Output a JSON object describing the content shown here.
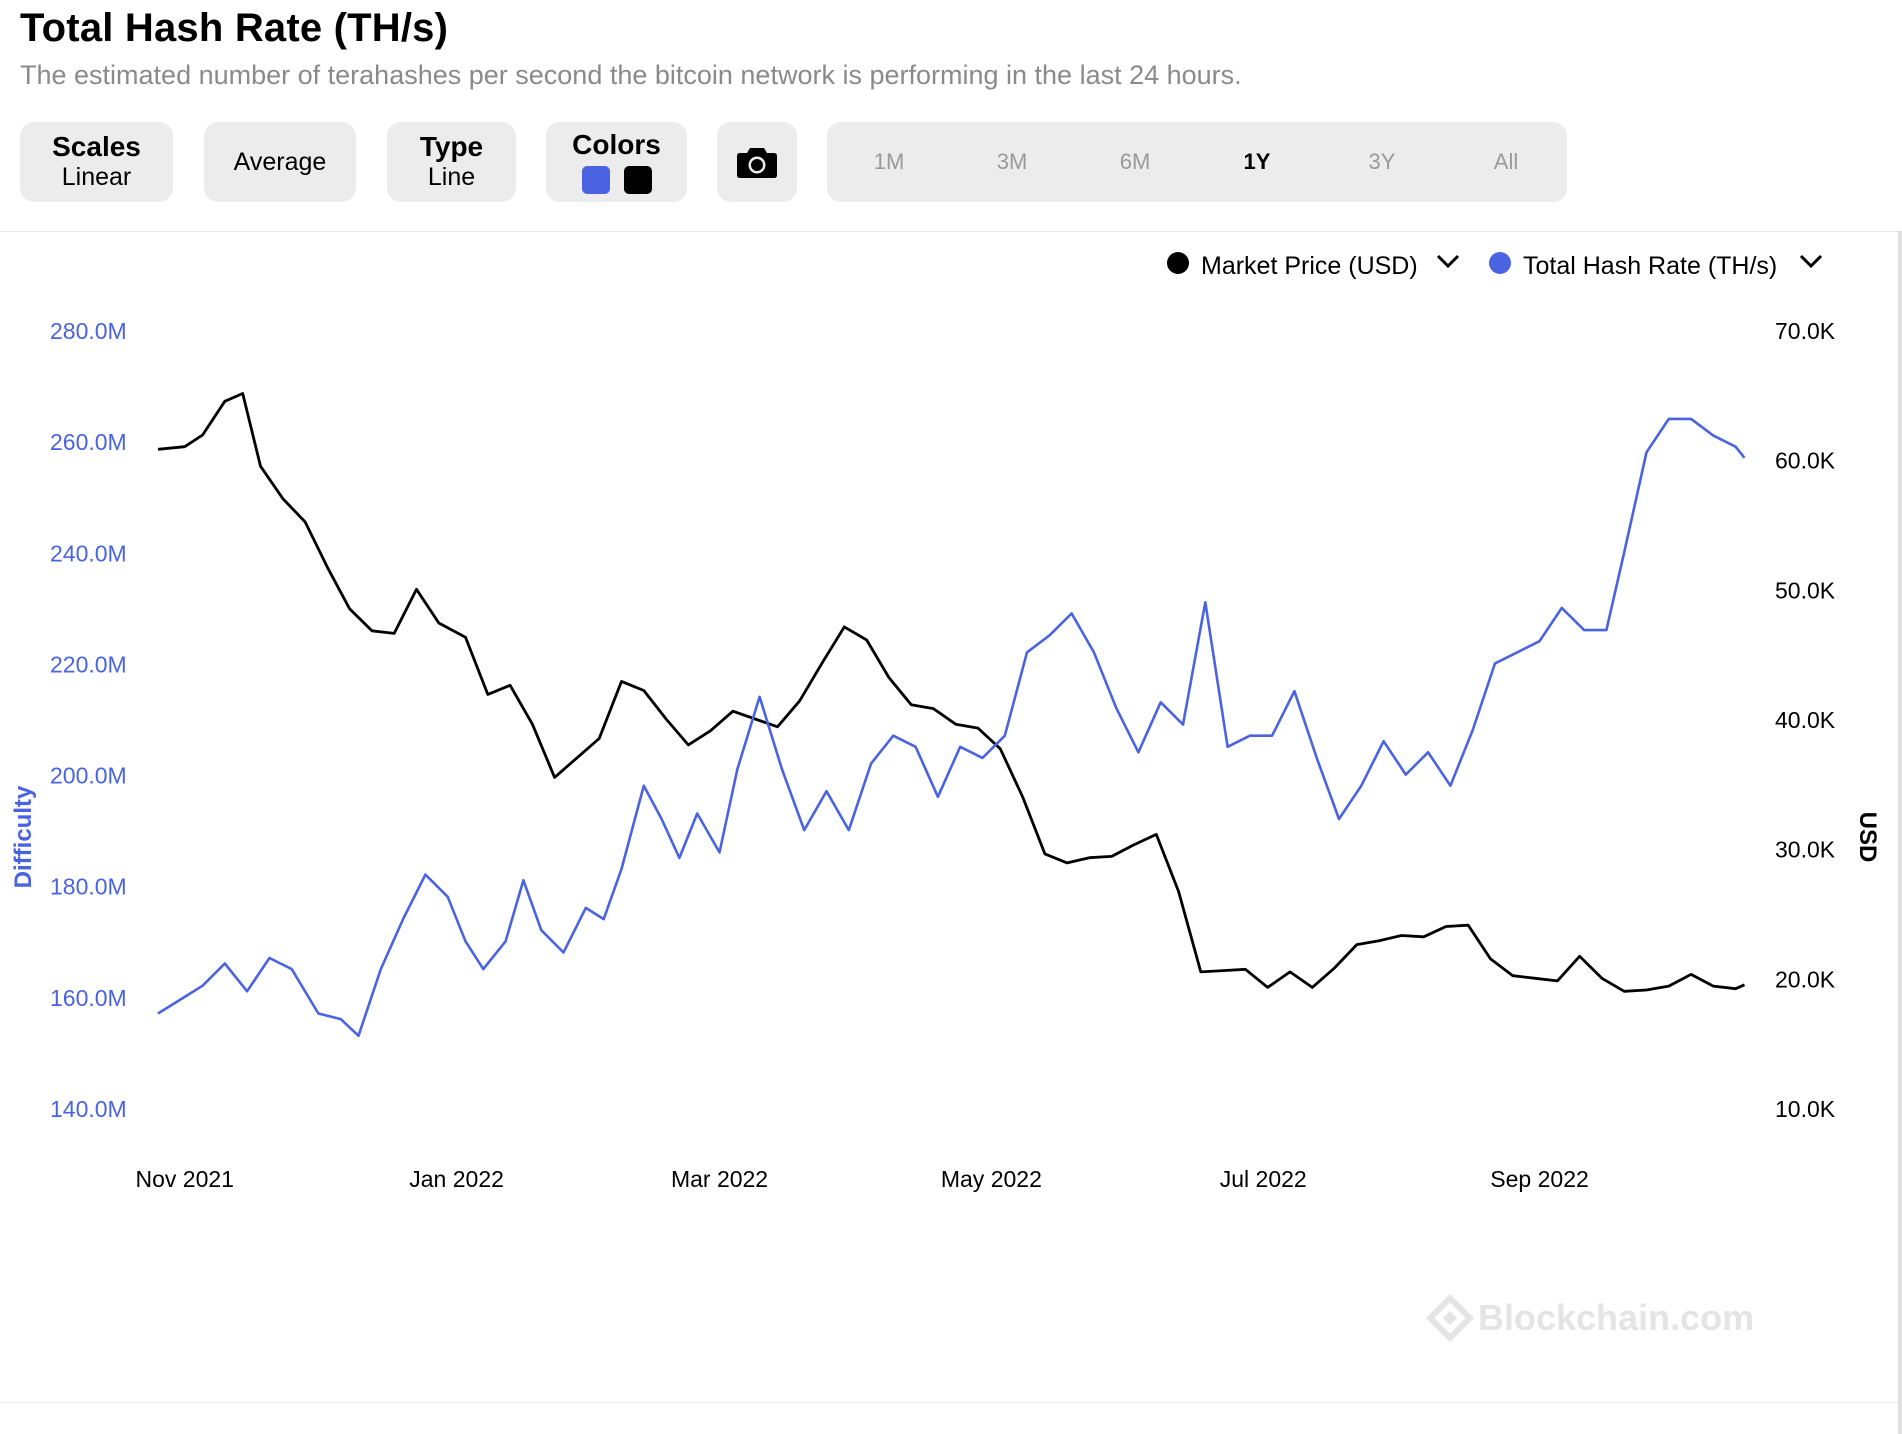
{
  "header": {
    "title": "Total Hash Rate (TH/s)",
    "subtitle": "The estimated number of terahashes per second the bitcoin network is performing in the last 24 hours."
  },
  "controls": {
    "scales": {
      "label": "Scales",
      "value": "Linear"
    },
    "average": {
      "label": "Average"
    },
    "type": {
      "label": "Type",
      "value": "Line"
    },
    "colors": {
      "label": "Colors",
      "swatches": [
        "#4a63e0",
        "#000000"
      ]
    },
    "camera": {
      "icon": "camera-icon"
    },
    "ranges": [
      "1M",
      "3M",
      "6M",
      "1Y",
      "3Y",
      "All"
    ],
    "selected_range": "1Y"
  },
  "watermark": "Blockchain.com",
  "chart_data": {
    "type": "line",
    "legend": [
      {
        "name": "Market Price (USD)",
        "color": "#000000"
      },
      {
        "name": "Total Hash Rate (TH/s)",
        "color": "#4a63e0"
      }
    ],
    "legend_position": "top-right",
    "x_ticks": [
      "Nov 2021",
      "Jan 2022",
      "Mar 2022",
      "May 2022",
      "Jul 2022",
      "Sep 2022"
    ],
    "x_tick_dates": [
      "2021-11-01",
      "2022-01-01",
      "2022-03-01",
      "2022-05-01",
      "2022-07-01",
      "2022-09-01"
    ],
    "xlim": [
      "2021-10-26",
      "2022-10-18"
    ],
    "y_left": {
      "label": "Difficulty",
      "ticks": [
        "280.0M",
        "260.0M",
        "240.0M",
        "220.0M",
        "200.0M",
        "180.0M",
        "160.0M",
        "140.0M"
      ],
      "range": [
        140,
        280
      ],
      "color": "#4a63e0"
    },
    "y_right": {
      "label": "USD",
      "ticks": [
        "70.0K",
        "60.0K",
        "50.0K",
        "40.0K",
        "30.0K",
        "20.0K",
        "10.0K"
      ],
      "range": [
        10,
        70
      ]
    },
    "grid": false,
    "series": [
      {
        "name": "Total Hash Rate (TH/s)",
        "axis": "left",
        "color": "#4a63e0",
        "points": [
          [
            "2021-10-26",
            157
          ],
          [
            "2021-11-01",
            160
          ],
          [
            "2021-11-05",
            162
          ],
          [
            "2021-11-10",
            166
          ],
          [
            "2021-11-15",
            161
          ],
          [
            "2021-11-20",
            167
          ],
          [
            "2021-11-25",
            165
          ],
          [
            "2021-12-01",
            157
          ],
          [
            "2021-12-06",
            156
          ],
          [
            "2021-12-10",
            153
          ],
          [
            "2021-12-15",
            165
          ],
          [
            "2021-12-20",
            174
          ],
          [
            "2021-12-25",
            182
          ],
          [
            "2021-12-30",
            178
          ],
          [
            "2022-01-03",
            170
          ],
          [
            "2022-01-07",
            165
          ],
          [
            "2022-01-12",
            170
          ],
          [
            "2022-01-16",
            181
          ],
          [
            "2022-01-20",
            172
          ],
          [
            "2022-01-25",
            168
          ],
          [
            "2022-01-30",
            176
          ],
          [
            "2022-02-03",
            174
          ],
          [
            "2022-02-07",
            183
          ],
          [
            "2022-02-12",
            198
          ],
          [
            "2022-02-16",
            192
          ],
          [
            "2022-02-20",
            185
          ],
          [
            "2022-02-24",
            193
          ],
          [
            "2022-03-01",
            186
          ],
          [
            "2022-03-05",
            201
          ],
          [
            "2022-03-10",
            214
          ],
          [
            "2022-03-15",
            201
          ],
          [
            "2022-03-20",
            190
          ],
          [
            "2022-03-25",
            197
          ],
          [
            "2022-03-30",
            190
          ],
          [
            "2022-04-04",
            202
          ],
          [
            "2022-04-09",
            207
          ],
          [
            "2022-04-14",
            205
          ],
          [
            "2022-04-19",
            196
          ],
          [
            "2022-04-24",
            205
          ],
          [
            "2022-04-29",
            203
          ],
          [
            "2022-05-04",
            207
          ],
          [
            "2022-05-09",
            222
          ],
          [
            "2022-05-14",
            225
          ],
          [
            "2022-05-19",
            229
          ],
          [
            "2022-05-24",
            222
          ],
          [
            "2022-05-29",
            212
          ],
          [
            "2022-06-03",
            204
          ],
          [
            "2022-06-08",
            213
          ],
          [
            "2022-06-13",
            209
          ],
          [
            "2022-06-18",
            231
          ],
          [
            "2022-06-23",
            205
          ],
          [
            "2022-06-28",
            207
          ],
          [
            "2022-07-03",
            207
          ],
          [
            "2022-07-08",
            215
          ],
          [
            "2022-07-13",
            203
          ],
          [
            "2022-07-18",
            192
          ],
          [
            "2022-07-23",
            198
          ],
          [
            "2022-07-28",
            206
          ],
          [
            "2022-08-02",
            200
          ],
          [
            "2022-08-07",
            204
          ],
          [
            "2022-08-12",
            198
          ],
          [
            "2022-08-17",
            208
          ],
          [
            "2022-08-22",
            220
          ],
          [
            "2022-08-27",
            222
          ],
          [
            "2022-09-01",
            224
          ],
          [
            "2022-09-06",
            230
          ],
          [
            "2022-09-11",
            226
          ],
          [
            "2022-09-16",
            226
          ],
          [
            "2022-09-20",
            240
          ],
          [
            "2022-09-25",
            258
          ],
          [
            "2022-09-30",
            264
          ],
          [
            "2022-10-05",
            264
          ],
          [
            "2022-10-10",
            261
          ],
          [
            "2022-10-15",
            259
          ],
          [
            "2022-10-17",
            257
          ]
        ]
      },
      {
        "name": "Market Price (USD)",
        "axis": "right",
        "color": "#000000",
        "points": [
          [
            "2021-10-26",
            60.8
          ],
          [
            "2021-11-01",
            61.0
          ],
          [
            "2021-11-05",
            61.9
          ],
          [
            "2021-11-10",
            64.5
          ],
          [
            "2021-11-14",
            65.1
          ],
          [
            "2021-11-18",
            59.5
          ],
          [
            "2021-11-23",
            57.0
          ],
          [
            "2021-11-28",
            55.2
          ],
          [
            "2021-12-03",
            51.7
          ],
          [
            "2021-12-08",
            48.5
          ],
          [
            "2021-12-13",
            46.8
          ],
          [
            "2021-12-18",
            46.6
          ],
          [
            "2021-12-23",
            50.0
          ],
          [
            "2021-12-28",
            47.4
          ],
          [
            "2022-01-03",
            46.3
          ],
          [
            "2022-01-08",
            41.9
          ],
          [
            "2022-01-13",
            42.6
          ],
          [
            "2022-01-18",
            39.6
          ],
          [
            "2022-01-23",
            35.5
          ],
          [
            "2022-01-28",
            37.0
          ],
          [
            "2022-02-02",
            38.5
          ],
          [
            "2022-02-07",
            42.9
          ],
          [
            "2022-02-12",
            42.2
          ],
          [
            "2022-02-17",
            40.0
          ],
          [
            "2022-02-22",
            38.0
          ],
          [
            "2022-02-27",
            39.1
          ],
          [
            "2022-03-04",
            40.6
          ],
          [
            "2022-03-09",
            40.0
          ],
          [
            "2022-03-14",
            39.4
          ],
          [
            "2022-03-19",
            41.4
          ],
          [
            "2022-03-24",
            44.3
          ],
          [
            "2022-03-29",
            47.1
          ],
          [
            "2022-04-03",
            46.1
          ],
          [
            "2022-04-08",
            43.2
          ],
          [
            "2022-04-13",
            41.1
          ],
          [
            "2022-04-18",
            40.8
          ],
          [
            "2022-04-23",
            39.6
          ],
          [
            "2022-04-28",
            39.3
          ],
          [
            "2022-05-03",
            37.7
          ],
          [
            "2022-05-08",
            34.0
          ],
          [
            "2022-05-13",
            29.6
          ],
          [
            "2022-05-18",
            28.9
          ],
          [
            "2022-05-23",
            29.3
          ],
          [
            "2022-05-28",
            29.4
          ],
          [
            "2022-06-02",
            30.3
          ],
          [
            "2022-06-07",
            31.1
          ],
          [
            "2022-06-12",
            26.7
          ],
          [
            "2022-06-17",
            20.5
          ],
          [
            "2022-06-22",
            20.6
          ],
          [
            "2022-06-27",
            20.7
          ],
          [
            "2022-07-02",
            19.3
          ],
          [
            "2022-07-07",
            20.5
          ],
          [
            "2022-07-12",
            19.3
          ],
          [
            "2022-07-17",
            20.8
          ],
          [
            "2022-07-22",
            22.6
          ],
          [
            "2022-07-27",
            22.9
          ],
          [
            "2022-08-01",
            23.3
          ],
          [
            "2022-08-06",
            23.2
          ],
          [
            "2022-08-11",
            24.0
          ],
          [
            "2022-08-16",
            24.1
          ],
          [
            "2022-08-21",
            21.5
          ],
          [
            "2022-08-26",
            20.2
          ],
          [
            "2022-08-31",
            20.0
          ],
          [
            "2022-09-05",
            19.8
          ],
          [
            "2022-09-10",
            21.7
          ],
          [
            "2022-09-15",
            20.0
          ],
          [
            "2022-09-20",
            19.0
          ],
          [
            "2022-09-25",
            19.1
          ],
          [
            "2022-09-30",
            19.4
          ],
          [
            "2022-10-05",
            20.3
          ],
          [
            "2022-10-10",
            19.4
          ],
          [
            "2022-10-15",
            19.2
          ],
          [
            "2022-10-17",
            19.5
          ]
        ]
      }
    ]
  }
}
